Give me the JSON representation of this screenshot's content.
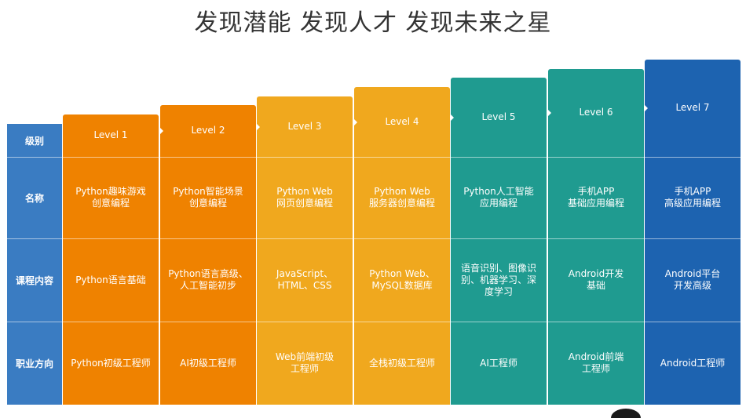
{
  "title": "发现潜能 发现人才 发现未来之星",
  "row_headers": {
    "level": "级别",
    "name": "名称",
    "content": "课程内容",
    "career": "职业方向"
  },
  "colors": {
    "row_header": "#3a7cc2",
    "orange": "#ef8200",
    "amber": "#f0a81e",
    "teal": "#1f9b90",
    "blue": "#1d63b0"
  },
  "levels": [
    {
      "level": "Level 1",
      "name": "Python趣味游戏\n创意编程",
      "content": "Python语言基础",
      "career": "Python初级工程师",
      "color": "#ef8200"
    },
    {
      "level": "Level 2",
      "name": "Python智能场景\n创意编程",
      "content": "Python语言高级、\n人工智能初步",
      "career": "AI初级工程师",
      "color": "#ef8200"
    },
    {
      "level": "Level 3",
      "name": "Python Web\n网页创意编程",
      "content": "JavaScript、\nHTML、CSS",
      "career": "Web前端初级\n工程师",
      "color": "#f0a81e"
    },
    {
      "level": "Level 4",
      "name": "Python Web\n服务器创意编程",
      "content": "Python Web、\nMySQL数据库",
      "career": "全栈初级工程师",
      "color": "#f0a81e"
    },
    {
      "level": "Level 5",
      "name": "Python人工智能\n应用编程",
      "content": "语音识别、图像识\n别、机器学习、深\n度学习",
      "career": "AI工程师",
      "color": "#1f9b90"
    },
    {
      "level": "Level 6",
      "name": "手机APP\n基础应用编程",
      "content": "Android开发\n基础",
      "career": "Android前端\n工程师",
      "color": "#1f9b90"
    },
    {
      "level": "Level 7",
      "name": "手机APP\n高级应用编程",
      "content": "Android平台\n开发高级",
      "career": "Android工程师",
      "color": "#1d63b0"
    }
  ]
}
